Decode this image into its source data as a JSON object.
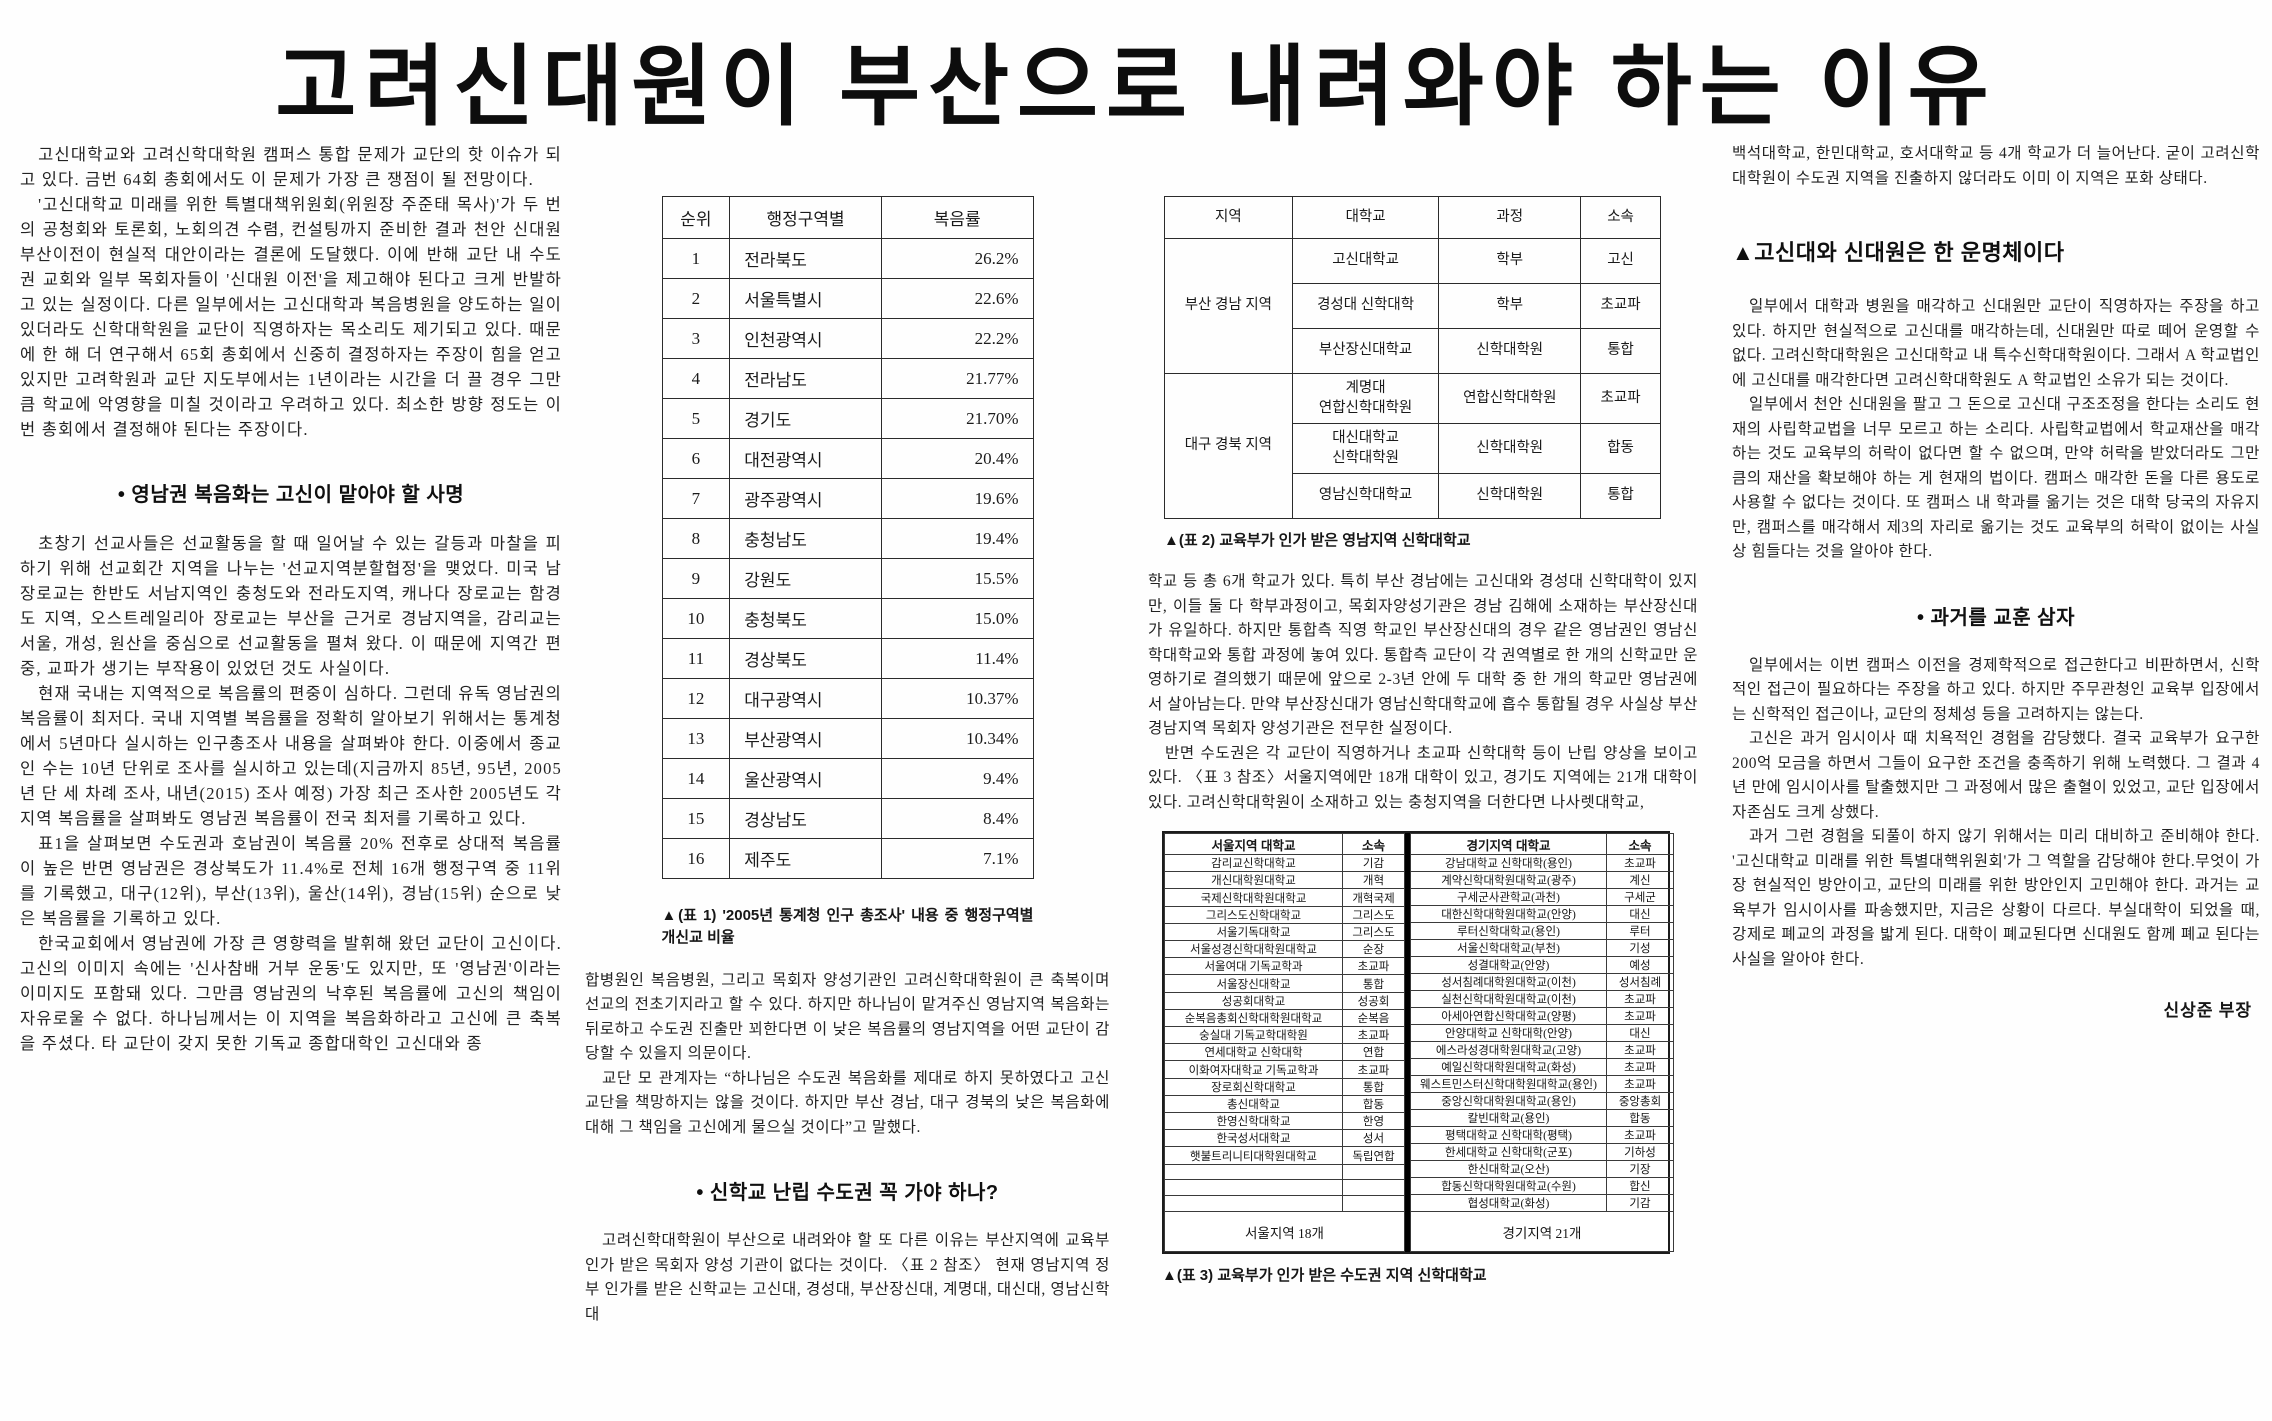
{
  "title": "고려신대원이 부산으로 내려와야 하는 이유",
  "byline": "신상준 부장",
  "colors": {
    "page_bg": "#fefefe",
    "text": "#1b1b1b",
    "table_border": "#2b2b2b"
  },
  "col1": {
    "paras_top": [
      "고신대학교와 고려신학대학원 캠퍼스 통합 문제가 교단의 핫 이슈가 되고 있다. 금번 64회 총회에서도 이 문제가 가장 큰 쟁점이 될 전망이다.",
      "'고신대학교 미래를 위한 특별대책위원회(위원장 주준태 목사)'가 두 번의 공청회와 토론회, 노회의견 수렴, 컨설팅까지 준비한 결과 천안 신대원 부산이전이 현실적 대안이라는 결론에 도달했다. 이에 반해 교단 내 수도권 교회와 일부 목회자들이 '신대원 이전'을 제고해야 된다고 크게 반발하고 있는 실정이다. 다른 일부에서는 고신대학과 복음병원을 양도하는 일이 있더라도 신학대학원을 교단이 직영하자는 목소리도 제기되고 있다. 때문에 한 해 더 연구해서 65회 총회에서 신중히 결정하자는 주장이 힘을 얻고 있지만 고려학원과 교단 지도부에서는 1년이라는 시간을 더 끌 경우 그만큼 학교에 악영향을 미칠 것이라고 우려하고 있다. 최소한 방향 정도는 이번 총회에서 결정해야 된다는 주장이다."
    ],
    "heading": "• 영남권 복음화는 고신이 맡아야 할 사명",
    "paras_bottom": [
      "초창기 선교사들은 선교활동을 할 때 일어날 수 있는 갈등과 마찰을 피하기 위해 선교회간 지역을 나누는 '선교지역분할협정'을 맺었다. 미국 남장로교는 한반도 서남지역인 충청도와 전라도지역, 캐나다 장로교는 함경도 지역, 오스트레일리아 장로교는 부산을 근거로 경남지역을, 감리교는 서울, 개성, 원산을 중심으로 선교활동을 펼쳐 왔다. 이 때문에 지역간 편중, 교파가 생기는 부작용이 있었던 것도 사실이다.",
      "현재 국내는 지역적으로 복음률의 편중이 심하다. 그런데 유독 영남권의 복음률이 최저다. 국내 지역별 복음률을 정확히 알아보기 위해서는 통계청에서 5년마다 실시하는 인구총조사 내용을 살펴봐야 한다. 이중에서 종교인 수는 10년 단위로 조사를 실시하고 있는데(지금까지 85년, 95년, 2005년 단 세 차례 조사, 내년(2015) 조사 예정) 가장 최근 조사한 2005년도 각 지역 복음률을 살펴봐도 영남권 복음률이 전국 최저를 기록하고 있다.",
      "표1을 살펴보면 수도권과 호남권이 복음률 20% 전후로 상대적 복음률이 높은 반면 영남권은 경상북도가 11.4%로 전체 16개 행정구역 중 11위를 기록했고, 대구(12위), 부산(13위), 울산(14위), 경남(15위) 순으로 낮은 복음률을 기록하고 있다.",
      "한국교회에서 영남권에 가장 큰 영향력을 발휘해 왔던 교단이 고신이다. 고신의 이미지 속에는 '신사참배 거부 운동'도 있지만, 또 '영남권'이라는 이미지도 포함돼 있다. 그만큼 영남권의 낙후된 복음률에 고신의 책임이 자유로울 수 없다. 하나님께서는 이 지역을 복음화하라고 고신에 큰 축복을 주셨다. 타 교단이 갖지 못한 기독교 종합대학인 고신대와 종"
    ]
  },
  "table1": {
    "headers": [
      "순위",
      "행정구역별",
      "복음률"
    ],
    "rows": [
      [
        "1",
        "전라북도",
        "26.2%"
      ],
      [
        "2",
        "서울특별시",
        "22.6%"
      ],
      [
        "3",
        "인천광역시",
        "22.2%"
      ],
      [
        "4",
        "전라남도",
        "21.77%"
      ],
      [
        "5",
        "경기도",
        "21.70%"
      ],
      [
        "6",
        "대전광역시",
        "20.4%"
      ],
      [
        "7",
        "광주광역시",
        "19.6%"
      ],
      [
        "8",
        "충청남도",
        "19.4%"
      ],
      [
        "9",
        "강원도",
        "15.5%"
      ],
      [
        "10",
        "충청북도",
        "15.0%"
      ],
      [
        "11",
        "경상북도",
        "11.4%"
      ],
      [
        "12",
        "대구광역시",
        "10.37%"
      ],
      [
        "13",
        "부산광역시",
        "10.34%"
      ],
      [
        "14",
        "울산광역시",
        "9.4%"
      ],
      [
        "15",
        "경상남도",
        "8.4%"
      ],
      [
        "16",
        "제주도",
        "7.1%"
      ]
    ],
    "caption": "▲(표 1) '2005년 통계청 인구 총조사' 내용 중 행정구역별 개신교 비율"
  },
  "col2": {
    "paras_top": [
      "합병원인 복음병원, 그리고 목회자 양성기관인 고려신학대학원이 큰 축복이며 선교의 전초기지라고 할 수 있다. 하지만 하나님이 맡겨주신 영남지역 복음화는 뒤로하고 수도권 진출만 꾀한다면 이 낮은 복음률의 영남지역을 어떤 교단이 감당할 수 있을지 의문이다.",
      "교단 모 관계자는 “하나님은 수도권 복음화를 제대로 하지 못하였다고 고신교단을 책망하지는 않을 것이다. 하지만 부산 경남, 대구 경북의 낮은 복음화에 대해 그 책임을 고신에게 물으실 것이다”고 말했다."
    ],
    "heading": "• 신학교 난립 수도권 꼭 가야 하나?",
    "paras_bottom": [
      "고려신학대학원이 부산으로 내려와야 할 또 다른 이유는 부산지역에 교육부 인가 받은 목회자 양성 기관이 없다는 것이다. 〈표 2 참조〉 현재 영남지역 정부 인가를 받은 신학교는 고신대, 경성대, 부산장신대, 계명대, 대신대, 영남신학대"
    ]
  },
  "table2": {
    "headers": [
      "지역",
      "대학교",
      "과정",
      "소속"
    ],
    "region1": "부산 경남 지역",
    "region2": "대구 경북 지역",
    "rows1": [
      [
        "고신대학교",
        "학부",
        "고신"
      ],
      [
        "경성대 신학대학",
        "학부",
        "초교파"
      ],
      [
        "부산장신대학교",
        "신학대학원",
        "통합"
      ]
    ],
    "rows2": [
      [
        "계명대\n연합신학대학원",
        "연합신학대학원",
        "초교파"
      ],
      [
        "대신대학교\n신학대학원",
        "신학대학원",
        "합동"
      ],
      [
        "영남신학대학교",
        "신학대학원",
        "통합"
      ]
    ],
    "caption": "▲(표 2) 교육부가 인가 받은 영남지역 신학대학교"
  },
  "col3": {
    "paras": [
      "학교 등 총 6개 학교가 있다. 특히 부산 경남에는 고신대와 경성대 신학대학이 있지만, 이들 둘 다 학부과정이고, 목회자양성기관은 경남 김해에 소재하는 부산장신대가 유일하다. 하지만 통합측 직영 학교인 부산장신대의 경우 같은 영남권인 영남신학대학교와 통합 과정에 놓여 있다. 통합측 교단이 각 권역별로 한 개의 신학교만 운영하기로 결의했기 때문에 앞으로 2-3년 안에 두 대학 중 한 개의 학교만 영남권에서 살아남는다. 만약 부산장신대가 영남신학대학교에 흡수 통합될 경우 사실상 부산 경남지역 목회자 양성기관은 전무한 실정이다.",
      "반면 수도권은 각 교단이 직영하거나 초교파 신학대학 등이 난립 양상을 보이고 있다. 〈표 3 참조〉서울지역에만 18개 대학이 있고, 경기도 지역에는 21개 대학이 있다. 고려신학대학원이 소재하고 있는 충청지역을 더한다면 나사렛대학교,"
    ]
  },
  "table3": {
    "left_headers": [
      "서울지역 대학교",
      "소속"
    ],
    "right_headers": [
      "경기지역 대학교",
      "소속"
    ],
    "left_rows": [
      [
        "감리교신학대학교",
        "기감"
      ],
      [
        "개신대학원대학교",
        "개혁"
      ],
      [
        "국제신학대학원대학교",
        "개혁국제"
      ],
      [
        "그리스도신학대학교",
        "그리스도"
      ],
      [
        "서울기독대학교",
        "그리스도"
      ],
      [
        "서울성경신학대학원대학교",
        "순장"
      ],
      [
        "서울여대 기독교학과",
        "초교파"
      ],
      [
        "서울장신대학교",
        "통합"
      ],
      [
        "성공회대학교",
        "성공회"
      ],
      [
        "순복음총회신학대학원대학교",
        "순복음"
      ],
      [
        "숭실대 기독교학대학원",
        "초교파"
      ],
      [
        "연세대학교 신학대학",
        "연합"
      ],
      [
        "이화여자대학교 기독교학과",
        "초교파"
      ],
      [
        "장로회신학대학교",
        "통합"
      ],
      [
        "총신대학교",
        "합동"
      ],
      [
        "한영신학대학교",
        "한영"
      ],
      [
        "한국성서대학교",
        "성서"
      ],
      [
        "햇불트리니티대학원대학교",
        "독립연합"
      ],
      [
        "",
        ""
      ],
      [
        "",
        ""
      ],
      [
        "",
        ""
      ]
    ],
    "right_rows": [
      [
        "강남대학교 신학대학(용인)",
        "초교파"
      ],
      [
        "계약신학대학원대학교(광주)",
        "계신"
      ],
      [
        "구세군사관학교(과천)",
        "구세군"
      ],
      [
        "대한신학대학원대학교(안양)",
        "대신"
      ],
      [
        "루터신학대학교(용인)",
        "루터"
      ],
      [
        "서울신학대학교(부천)",
        "기성"
      ],
      [
        "성결대학교(안양)",
        "예성"
      ],
      [
        "성서침례대학원대학교(이천)",
        "성서침례"
      ],
      [
        "실천신학대학원대학교(이천)",
        "초교파"
      ],
      [
        "아세아연합신학대학교(양평)",
        "초교파"
      ],
      [
        "안양대학교 신학대학(안양)",
        "대신"
      ],
      [
        "에스라성경대학원대학교(고양)",
        "초교파"
      ],
      [
        "예일신학대학원대학교(화성)",
        "초교파"
      ],
      [
        "웨스트민스터신학대학원대학교(용인)",
        "초교파"
      ],
      [
        "중앙신학대학원대학교(용인)",
        "중앙총회"
      ],
      [
        "칼빈대학교(용인)",
        "합동"
      ],
      [
        "평택대학교 신학대학(평택)",
        "초교파"
      ],
      [
        "한세대학교 신학대학(군포)",
        "기하성"
      ],
      [
        "한신대학교(오산)",
        "기장"
      ],
      [
        "합동신학대학원대학교(수원)",
        "합신"
      ],
      [
        "협성대학교(화성)",
        "기감"
      ]
    ],
    "left_footer": "서울지역 18개",
    "right_footer": "경기지역 21개",
    "caption": "▲(표 3) 교육부가 인가 받은 수도권 지역 신학대학교"
  },
  "col4": {
    "paras_top": [
      "백석대학교, 한민대학교, 호서대학교 등 4개 학교가 더 늘어난다. 굳이 고려신학대학원이 수도권 지역을 진출하지 않더라도 이미 이 지역은 포화 상태다."
    ],
    "heading1": "▲고신대와 신대원은 한 운명체이다",
    "paras_mid": [
      "일부에서 대학과 병원을 매각하고 신대원만 교단이 직영하자는 주장을 하고 있다. 하지만 현실적으로 고신대를 매각하는데, 신대원만 따로 떼어 운영할 수 없다. 고려신학대학원은 고신대학교 내 특수신학대학원이다. 그래서 A 학교법인에 고신대를 매각한다면 고려신학대학원도 A 학교법인 소유가 되는 것이다.",
      "일부에서 천안 신대원을 팔고 그 돈으로 고신대 구조조정을 한다는 소리도 현재의 사립학교법을 너무 모르고 하는 소리다. 사립학교법에서 학교재산을 매각하는 것도 교육부의 허락이 없다면 할 수 없으며, 만약 허락을 받았더라도 그만큼의 재산을 확보해야 하는 게 현재의 법이다. 캠퍼스 매각한 돈을 다른 용도로 사용할 수 없다는 것이다. 또 캠퍼스 내 학과를 옮기는 것은 대학 당국의 자유지만, 캠퍼스를 매각해서 제3의 자리로 옮기는 것도 교육부의 허락이 없이는 사실상 힘들다는 것을 알아야 한다."
    ],
    "heading2": "• 과거를 교훈 삼자",
    "paras_bottom": [
      "일부에서는 이번 캠퍼스 이전을 경제학적으로 접근한다고 비판하면서, 신학적인 접근이 필요하다는 주장을 하고 있다. 하지만 주무관청인 교육부 입장에서는 신학적인 접근이나, 교단의 정체성 등을 고려하지는 않는다.",
      "고신은 과거 임시이사 때 치욕적인 경험을 감당했다. 결국 교육부가 요구한 200억 모금을 하면서 그들이 요구한 조건을 충족하기 위해 노력했다. 그 결과 4년 만에 임시이사를 탈출했지만 그 과정에서 많은 출혈이 있었고, 교단 입장에서 자존심도 크게 상했다.",
      "과거 그런 경험을 되풀이 하지 않기 위해서는 미리 대비하고 준비해야 한다. '고신대학교 미래를 위한 특별대핵위원회'가 그 역할을 감당해야 한다.무엇이 가장 현실적인 방안이고, 교단의 미래를 위한 방안인지 고민해야 한다. 과거는 교육부가 임시이사를 파송했지만, 지금은 상황이 다르다. 부실대학이 되었을 때, 강제로 폐교의 과정을 밟게 된다. 대학이 폐교된다면 신대원도 함께 폐교 된다는 사실을 알아야 한다."
    ]
  }
}
